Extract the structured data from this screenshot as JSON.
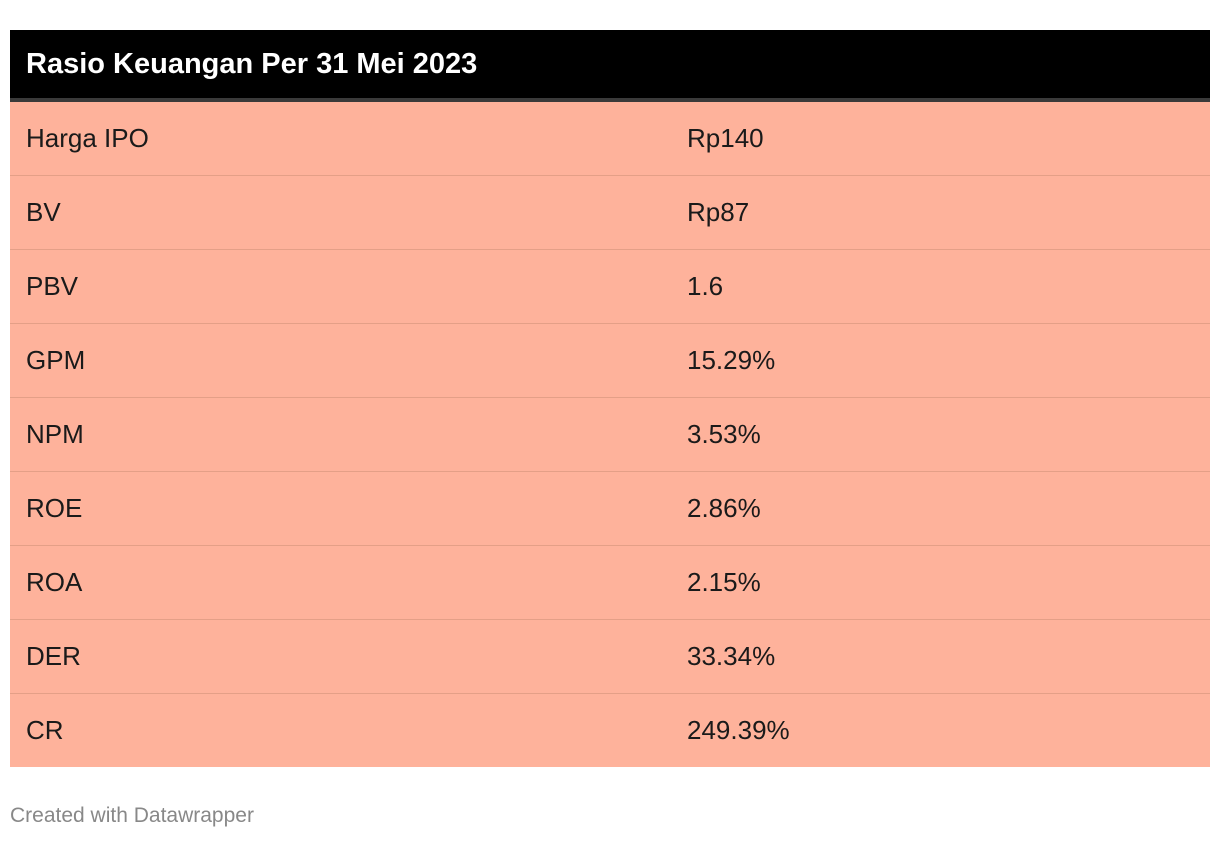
{
  "title": "Rasio Keuangan Per 31 Mei 2023",
  "colors": {
    "header_bg": "#000000",
    "header_text": "#ffffff",
    "row_bg": "#feb29b",
    "row_divider": "#e49f87",
    "footer_text": "#888888"
  },
  "chart_data": {
    "type": "table",
    "title": "Rasio Keuangan Per 31 Mei 2023",
    "rows": [
      {
        "label": "Harga IPO",
        "value": "Rp140"
      },
      {
        "label": "BV",
        "value": "Rp87"
      },
      {
        "label": "PBV",
        "value": "1.6"
      },
      {
        "label": "GPM",
        "value": "15.29%"
      },
      {
        "label": "NPM",
        "value": "3.53%"
      },
      {
        "label": "ROE",
        "value": "2.86%"
      },
      {
        "label": "ROA",
        "value": "2.15%"
      },
      {
        "label": "DER",
        "value": "33.34%"
      },
      {
        "label": "CR",
        "value": "249.39%"
      }
    ]
  },
  "footer": "Created with Datawrapper"
}
